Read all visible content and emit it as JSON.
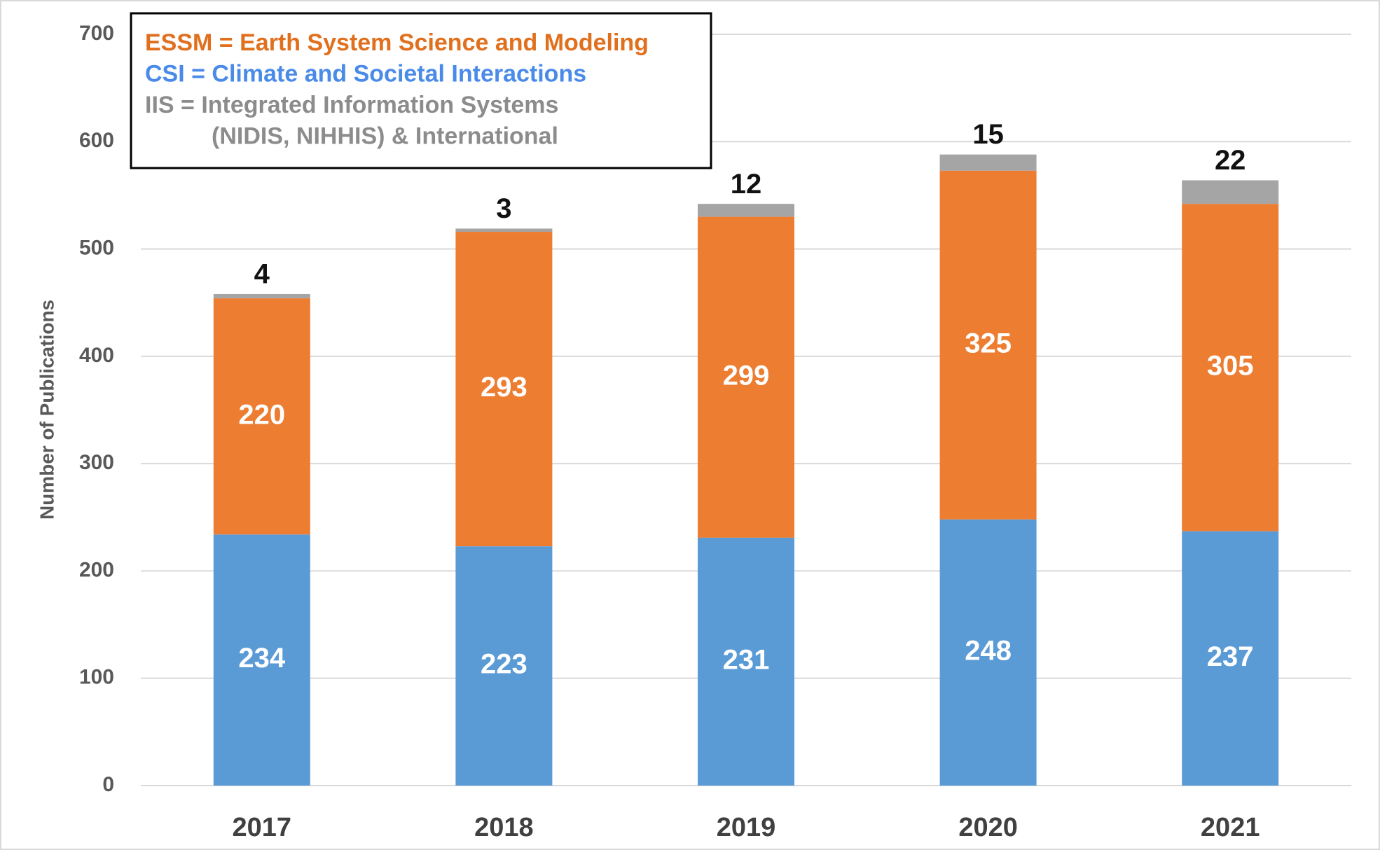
{
  "chart_data": {
    "type": "stacked_bar",
    "ylabel": "Number of Publications",
    "categories": [
      "2017",
      "2018",
      "2019",
      "2020",
      "2021"
    ],
    "series": [
      {
        "name": "CSI = Climate and Societal Interactions",
        "color": "#5b9bd5",
        "text_color": "#4a8ae8",
        "label_color": "#ffffff",
        "values": [
          234,
          223,
          231,
          248,
          237
        ]
      },
      {
        "name": "ESSM = Earth System Science and Modeling",
        "color": "#ed7d31",
        "text_color": "#e0701e",
        "label_color": "#ffffff",
        "values": [
          220,
          293,
          299,
          325,
          305
        ]
      },
      {
        "name": "IIS = Integrated Information Systems",
        "color": "#a5a5a5",
        "text_color": "#8c8c8c",
        "label_color": "#111111",
        "values": [
          4,
          3,
          12,
          15,
          22
        ]
      }
    ],
    "legend_order": [
      1,
      0,
      2
    ],
    "legend_note": "(NIDIS, NIHHIS) & International",
    "ylim": [
      0,
      700
    ],
    "yticks": [
      0,
      100,
      200,
      300,
      400,
      500,
      600,
      700
    ],
    "grid": true
  }
}
